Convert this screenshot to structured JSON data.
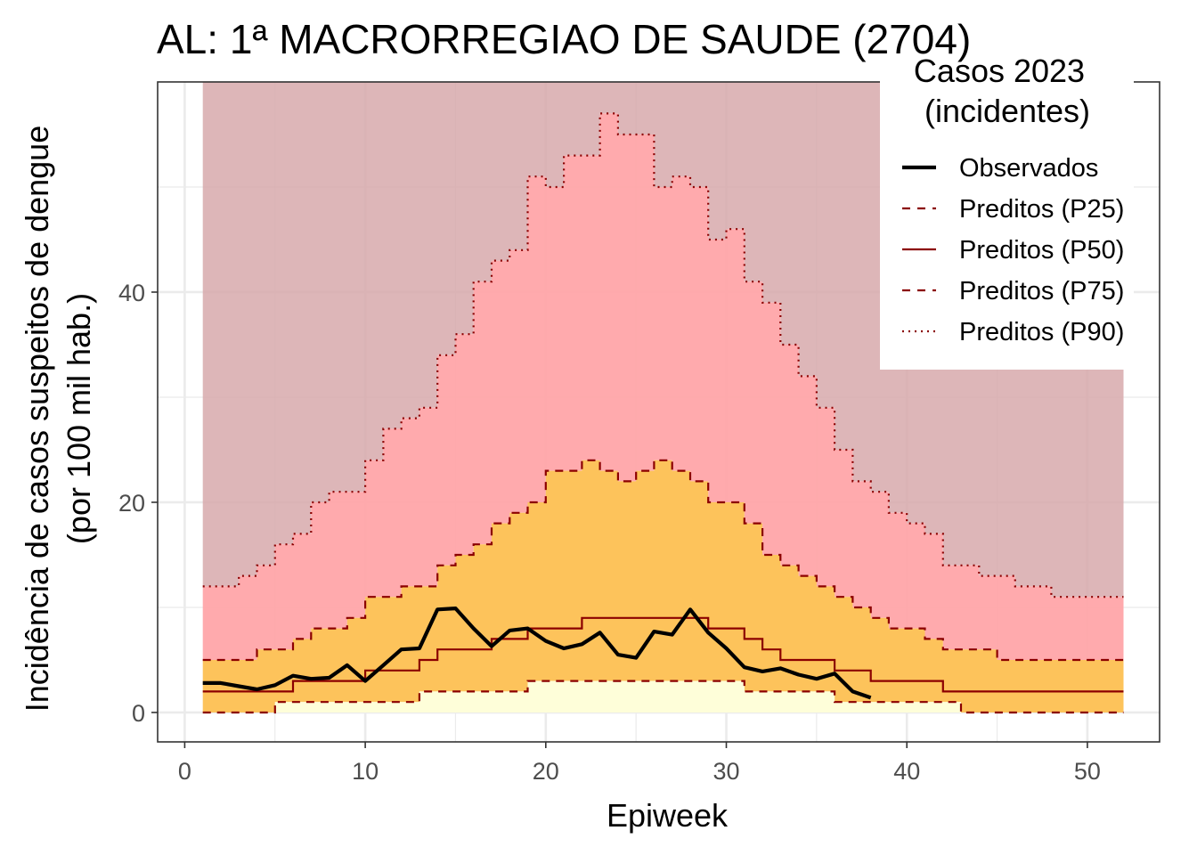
{
  "chart_data": {
    "type": "line",
    "title": "AL: 1ª MACRORREGIAO DE SAUDE (2704)",
    "xlabel": "Epiweek",
    "ylabel_line1": "Incidência de casos suspeitos de dengue",
    "ylabel_line2": "(por 100 mil hab.)",
    "xlim": [
      -1.5,
      54
    ],
    "ylim": [
      -2.8,
      60
    ],
    "x_ticks": [
      0,
      10,
      20,
      30,
      40,
      50
    ],
    "y_ticks": [
      0,
      20,
      40
    ],
    "grid": true,
    "legend_position": "top-right",
    "legend_title_line1": "Casos 2023",
    "legend_title_line2": "(incidentes)",
    "colors": {
      "above_p90": "#d5a6a8",
      "p75_p90": "#ffa3a6",
      "p25_p75": "#fdc35b",
      "below_p25": "#fefed9",
      "predicted_line": "#8b0000",
      "observed_line": "#000000"
    },
    "weeks": [
      1,
      2,
      3,
      4,
      5,
      6,
      7,
      8,
      9,
      10,
      11,
      12,
      13,
      14,
      15,
      16,
      17,
      18,
      19,
      20,
      21,
      22,
      23,
      24,
      25,
      26,
      27,
      28,
      29,
      30,
      31,
      32,
      33,
      34,
      35,
      36,
      37,
      38,
      39,
      40,
      41,
      42,
      43,
      44,
      45,
      46,
      47,
      48,
      49,
      50,
      51,
      52
    ],
    "series": [
      {
        "name": "Observados",
        "style": "solid-thick",
        "x": [
          1,
          2,
          3,
          4,
          5,
          6,
          7,
          8,
          9,
          10,
          11,
          12,
          13,
          14,
          15,
          16,
          17,
          18,
          19,
          20,
          21,
          22,
          23,
          24,
          25,
          26,
          27,
          28,
          29,
          30,
          31,
          32,
          33,
          34,
          35,
          36,
          37,
          38
        ],
        "values": [
          2.8,
          2.8,
          2.5,
          2.2,
          2.6,
          3.5,
          3.2,
          3.3,
          4.5,
          3.0,
          4.5,
          6.0,
          6.1,
          9.8,
          9.9,
          8.0,
          6.3,
          7.8,
          8.0,
          6.8,
          6.1,
          6.5,
          7.6,
          5.5,
          5.2,
          7.7,
          7.4,
          9.8,
          7.6,
          6.1,
          4.3,
          3.9,
          4.2,
          3.6,
          3.2,
          3.7,
          2.0,
          1.4
        ]
      },
      {
        "name": "Preditos (P25)",
        "style": "dashed",
        "values": [
          0,
          0,
          0,
          0,
          1,
          1,
          1,
          1,
          1,
          1,
          1,
          1,
          2,
          2,
          2,
          2,
          2,
          2,
          3,
          3,
          3,
          3,
          3,
          3,
          3,
          3,
          3,
          3,
          3,
          3,
          2,
          2,
          2,
          2,
          2,
          1,
          1,
          1,
          1,
          1,
          1,
          1,
          0,
          0,
          0,
          0,
          0,
          0,
          0,
          0,
          0,
          0
        ]
      },
      {
        "name": "Preditos (P50)",
        "style": "solid",
        "values": [
          2,
          2,
          2,
          2,
          2,
          3,
          3,
          3,
          3,
          4,
          4,
          4,
          5,
          6,
          6,
          6,
          7,
          7,
          8,
          8,
          8,
          9,
          9,
          9,
          9,
          9,
          9,
          9,
          8,
          8,
          7,
          6,
          5,
          5,
          5,
          4,
          4,
          3,
          3,
          3,
          3,
          2,
          2,
          2,
          2,
          2,
          2,
          2,
          2,
          2,
          2,
          2
        ]
      },
      {
        "name": "Preditos (P75)",
        "style": "dashed",
        "values": [
          5,
          5,
          5,
          6,
          6,
          7,
          8,
          8,
          9,
          11,
          11,
          12,
          12,
          14,
          15,
          16,
          18,
          19,
          20,
          23,
          23,
          24,
          23,
          22,
          23,
          24,
          23,
          22,
          20,
          20,
          18,
          15,
          14,
          13,
          12,
          11,
          10,
          9,
          8,
          8,
          7,
          6,
          6,
          6,
          5,
          5,
          5,
          5,
          5,
          5,
          5,
          5
        ]
      },
      {
        "name": "Preditos (P90)",
        "style": "dotted",
        "values": [
          12,
          12,
          13,
          14,
          16,
          17,
          20,
          21,
          21,
          24,
          27,
          28,
          29,
          34,
          36,
          41,
          43,
          44,
          51,
          50,
          53,
          53,
          57,
          55,
          55,
          50,
          51,
          50,
          45,
          46,
          41,
          39,
          35,
          32,
          29,
          25,
          22,
          21,
          19,
          18,
          17,
          14,
          14,
          13,
          13,
          12,
          12,
          11,
          11,
          11,
          11,
          11
        ]
      }
    ]
  }
}
